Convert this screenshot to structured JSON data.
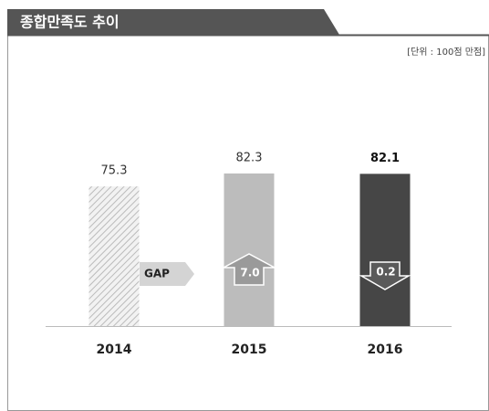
{
  "chart_data": {
    "type": "bar",
    "title": "종합만족도 추이",
    "unit_note": "[단위 : 100점 만점]",
    "categories": [
      "2014",
      "2015",
      "2016"
    ],
    "values": [
      75.3,
      82.3,
      82.1
    ],
    "colors": [
      "#dcdcdc",
      "#bcbcbc",
      "#464646"
    ],
    "hatch": [
      true,
      false,
      false
    ],
    "gap_title": "GAP",
    "gaps": [
      null,
      7.0,
      0.2
    ],
    "gap_labels": [
      null,
      "7.0",
      "0.2"
    ]
  }
}
